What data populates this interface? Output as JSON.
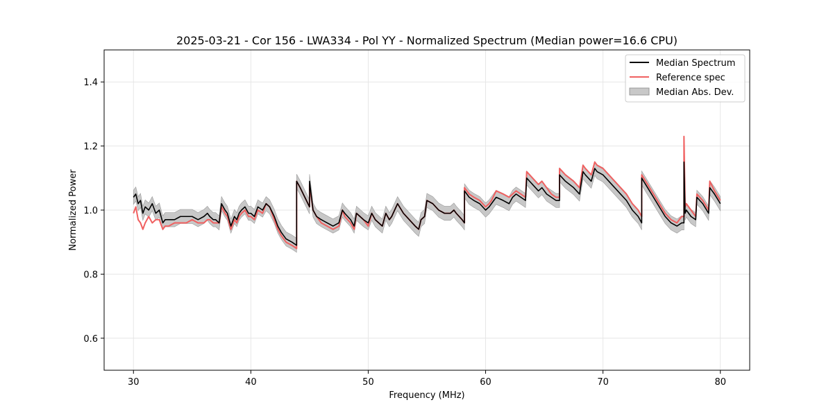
{
  "chart_data": {
    "type": "line",
    "title": "2025-03-21 - Cor 156 - LWA334 - Pol YY - Normalized Spectrum (Median power=16.6 CPU)",
    "xlabel": "Frequency (MHz)",
    "ylabel": "Normalized Power",
    "xlim": [
      27.5,
      82.5
    ],
    "ylim": [
      0.5,
      1.5
    ],
    "xticks": [
      30,
      40,
      50,
      60,
      70,
      80
    ],
    "yticks": [
      0.6,
      0.8,
      1.0,
      1.2,
      1.4
    ],
    "xtick_labels": [
      "30",
      "40",
      "50",
      "60",
      "70",
      "80"
    ],
    "ytick_labels": [
      "0.6",
      "0.8",
      "1.0",
      "1.2",
      "1.4"
    ],
    "grid": true,
    "legend_position": "top-right",
    "legend": {
      "median": "Median Spectrum",
      "reference": "Reference spec",
      "mad": "Median Abs. Dev."
    },
    "colors": {
      "median": "#000000",
      "reference": "#f06060",
      "mad_fill": "#c8c8c8",
      "mad_edge": "#999999",
      "grid": "#e6e6e6"
    },
    "mad_width": 0.022,
    "series": [
      {
        "name": "Median Spectrum",
        "x": [
          30.0,
          30.2,
          30.4,
          30.6,
          30.8,
          31.0,
          31.3,
          31.6,
          31.9,
          32.2,
          32.5,
          32.7,
          33.0,
          33.5,
          34.0,
          34.5,
          35.0,
          35.5,
          36.0,
          36.3,
          36.5,
          36.8,
          37.0,
          37.3,
          37.5,
          37.8,
          38.0,
          38.3,
          38.6,
          38.8,
          39.0,
          39.2,
          39.5,
          39.8,
          40.0,
          40.3,
          40.6,
          41.0,
          41.3,
          41.6,
          42.0,
          42.3,
          42.6,
          43.0,
          43.5,
          43.9,
          43.9,
          44.2,
          44.6,
          45.0,
          45.0,
          45.3,
          45.6,
          46.0,
          46.5,
          47.0,
          47.5,
          47.8,
          48.0,
          48.5,
          48.8,
          49.0,
          49.3,
          49.6,
          50.0,
          50.3,
          50.6,
          50.9,
          51.2,
          51.5,
          51.8,
          52.0,
          52.5,
          53.0,
          53.5,
          54.0,
          54.3,
          54.5,
          54.8,
          55.0,
          55.5,
          56.0,
          56.5,
          57.0,
          57.3,
          57.5,
          58.0,
          58.2,
          58.2,
          58.6,
          59.0,
          59.5,
          60.0,
          60.3,
          60.5,
          60.9,
          61.5,
          62.0,
          62.3,
          62.6,
          63.0,
          63.4,
          63.5,
          64.0,
          64.5,
          64.8,
          65.2,
          65.6,
          66.0,
          66.3,
          66.3,
          66.8,
          67.5,
          68.0,
          68.3,
          68.5,
          69.0,
          69.3,
          69.5,
          70.0,
          70.5,
          71.0,
          71.5,
          72.0,
          72.5,
          73.0,
          73.3,
          73.3,
          73.8,
          74.3,
          74.8,
          75.3,
          75.8,
          76.3,
          76.7,
          76.9,
          76.9,
          77.0,
          77.1,
          77.5,
          77.9,
          78.0,
          78.5,
          79.0,
          79.1,
          79.5,
          80.0
        ],
        "y": [
          1.04,
          1.05,
          1.02,
          1.03,
          0.99,
          1.01,
          1.0,
          1.02,
          0.99,
          1.0,
          0.96,
          0.97,
          0.97,
          0.97,
          0.98,
          0.98,
          0.98,
          0.97,
          0.98,
          0.99,
          0.98,
          0.97,
          0.97,
          0.96,
          1.02,
          1.0,
          0.99,
          0.95,
          0.98,
          0.97,
          0.99,
          1.0,
          1.01,
          0.99,
          0.99,
          0.98,
          1.01,
          1.0,
          1.02,
          1.01,
          0.98,
          0.95,
          0.93,
          0.91,
          0.9,
          0.89,
          1.09,
          1.07,
          1.04,
          1.01,
          1.09,
          1.0,
          0.98,
          0.97,
          0.96,
          0.95,
          0.96,
          1.0,
          0.99,
          0.97,
          0.95,
          0.99,
          0.98,
          0.97,
          0.96,
          0.99,
          0.97,
          0.96,
          0.95,
          0.99,
          0.97,
          0.98,
          1.02,
          0.99,
          0.97,
          0.95,
          0.94,
          0.97,
          0.98,
          1.03,
          1.02,
          1.0,
          0.99,
          0.99,
          1.0,
          0.99,
          0.97,
          0.96,
          1.06,
          1.04,
          1.03,
          1.02,
          1.0,
          1.01,
          1.02,
          1.04,
          1.03,
          1.02,
          1.04,
          1.05,
          1.04,
          1.03,
          1.1,
          1.08,
          1.06,
          1.07,
          1.05,
          1.04,
          1.03,
          1.03,
          1.11,
          1.09,
          1.07,
          1.05,
          1.12,
          1.11,
          1.09,
          1.13,
          1.12,
          1.11,
          1.09,
          1.07,
          1.05,
          1.03,
          1.0,
          0.98,
          0.96,
          1.1,
          1.07,
          1.04,
          1.01,
          0.98,
          0.96,
          0.95,
          0.96,
          0.96,
          1.15,
          0.99,
          1.0,
          0.98,
          0.97,
          1.04,
          1.02,
          0.99,
          1.07,
          1.05,
          1.02
        ]
      },
      {
        "name": "Reference spec",
        "x": [
          30.0,
          30.2,
          30.4,
          30.6,
          30.8,
          31.0,
          31.3,
          31.6,
          31.9,
          32.2,
          32.5,
          32.7,
          33.0,
          33.5,
          34.0,
          34.5,
          35.0,
          35.5,
          36.0,
          36.3,
          36.5,
          36.8,
          37.0,
          37.3,
          37.5,
          37.8,
          38.0,
          38.3,
          38.6,
          38.8,
          39.0,
          39.2,
          39.5,
          39.8,
          40.0,
          40.3,
          40.6,
          41.0,
          41.3,
          41.6,
          42.0,
          42.3,
          42.6,
          43.0,
          43.5,
          43.9,
          43.9,
          44.2,
          44.6,
          45.0,
          45.0,
          45.3,
          45.6,
          46.0,
          46.5,
          47.0,
          47.5,
          47.8,
          48.0,
          48.5,
          48.8,
          49.0,
          49.3,
          49.6,
          50.0,
          50.3,
          50.6,
          50.9,
          51.2,
          51.5,
          51.8,
          52.0,
          52.5,
          53.0,
          53.5,
          54.0,
          54.3,
          54.5,
          54.8,
          55.0,
          55.5,
          56.0,
          56.5,
          57.0,
          57.3,
          57.5,
          58.0,
          58.2,
          58.2,
          58.6,
          59.0,
          59.5,
          60.0,
          60.3,
          60.5,
          60.9,
          61.5,
          62.0,
          62.3,
          62.6,
          63.0,
          63.4,
          63.5,
          64.0,
          64.5,
          64.8,
          65.2,
          65.6,
          66.0,
          66.3,
          66.3,
          66.8,
          67.5,
          68.0,
          68.3,
          68.5,
          69.0,
          69.3,
          69.5,
          70.0,
          70.5,
          71.0,
          71.5,
          72.0,
          72.5,
          73.0,
          73.3,
          73.3,
          73.8,
          74.3,
          74.8,
          75.3,
          75.8,
          76.3,
          76.7,
          76.9,
          76.9,
          77.0,
          77.1,
          77.5,
          77.9,
          78.0,
          78.5,
          79.0,
          79.1,
          79.5,
          80.0
        ],
        "y": [
          0.99,
          1.01,
          0.97,
          0.96,
          0.94,
          0.96,
          0.98,
          0.96,
          0.97,
          0.97,
          0.94,
          0.95,
          0.95,
          0.96,
          0.96,
          0.96,
          0.97,
          0.96,
          0.96,
          0.97,
          0.97,
          0.96,
          0.96,
          0.96,
          1.01,
          0.99,
          0.98,
          0.94,
          0.97,
          0.96,
          0.98,
          0.99,
          1.0,
          0.98,
          0.98,
          0.97,
          1.0,
          0.99,
          1.02,
          1.01,
          0.97,
          0.94,
          0.92,
          0.9,
          0.89,
          0.88,
          1.09,
          1.07,
          1.04,
          1.01,
          1.08,
          1.0,
          0.98,
          0.96,
          0.95,
          0.94,
          0.95,
          1.0,
          0.98,
          0.96,
          0.94,
          0.99,
          0.98,
          0.97,
          0.95,
          0.99,
          0.97,
          0.96,
          0.95,
          0.99,
          0.97,
          0.98,
          1.02,
          0.99,
          0.97,
          0.95,
          0.94,
          0.97,
          0.98,
          1.03,
          1.02,
          1.0,
          0.99,
          0.99,
          1.0,
          0.99,
          0.97,
          0.96,
          1.07,
          1.05,
          1.04,
          1.03,
          1.01,
          1.02,
          1.03,
          1.06,
          1.05,
          1.04,
          1.05,
          1.06,
          1.05,
          1.04,
          1.12,
          1.1,
          1.08,
          1.09,
          1.07,
          1.05,
          1.04,
          1.04,
          1.13,
          1.11,
          1.09,
          1.07,
          1.14,
          1.13,
          1.11,
          1.15,
          1.14,
          1.13,
          1.11,
          1.09,
          1.07,
          1.05,
          1.02,
          1.0,
          0.98,
          1.11,
          1.08,
          1.05,
          1.02,
          0.99,
          0.97,
          0.96,
          0.98,
          0.98,
          1.23,
          1.01,
          1.02,
          1.0,
          0.98,
          1.05,
          1.03,
          1.0,
          1.09,
          1.06,
          1.03
        ]
      }
    ]
  }
}
